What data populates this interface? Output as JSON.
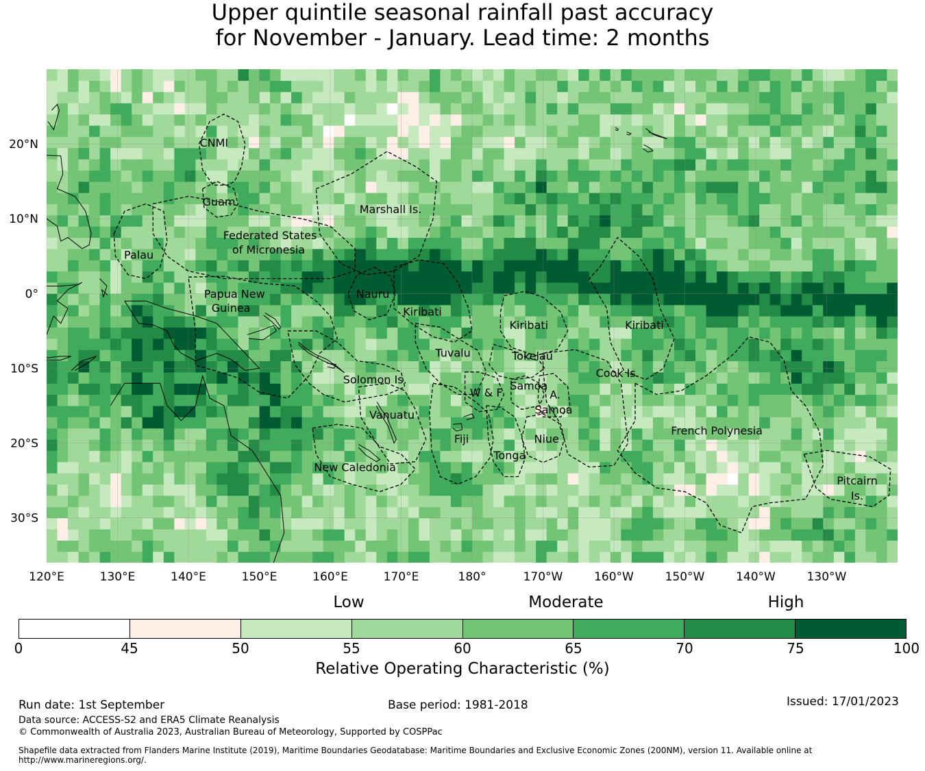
{
  "title": {
    "line1": "Upper quintile seasonal rainfall past accuracy",
    "line2": "for November - January. Lead time: 2 months"
  },
  "map": {
    "lat_range": [
      -36,
      30
    ],
    "lon_range": [
      120,
      240
    ],
    "lat_ticks": [
      {
        "lat": 20,
        "label": "20°N"
      },
      {
        "lat": 10,
        "label": "10°N"
      },
      {
        "lat": 0,
        "label": "0°"
      },
      {
        "lat": -10,
        "label": "10°S"
      },
      {
        "lat": -20,
        "label": "20°S"
      },
      {
        "lat": -30,
        "label": "30°S"
      }
    ],
    "lon_ticks": [
      {
        "lon": 120,
        "label": "120°E"
      },
      {
        "lon": 130,
        "label": "130°E"
      },
      {
        "lon": 140,
        "label": "140°E"
      },
      {
        "lon": 150,
        "label": "150°E"
      },
      {
        "lon": 160,
        "label": "160°E"
      },
      {
        "lon": 170,
        "label": "170°E"
      },
      {
        "lon": 180,
        "label": "180°"
      },
      {
        "lon": 190,
        "label": "170°W"
      },
      {
        "lon": 200,
        "label": "160°W"
      },
      {
        "lon": 210,
        "label": "150°W"
      },
      {
        "lon": 220,
        "label": "140°W"
      },
      {
        "lon": 230,
        "label": "130°W"
      }
    ],
    "grid": true,
    "regions": [
      {
        "name": "CNMI",
        "lon": 143.6,
        "lat": 20.2
      },
      {
        "name": "Guam",
        "lon": 144.3,
        "lat": 12.3
      },
      {
        "name": "Marshall Is.",
        "lon": 168.5,
        "lat": 11.3
      },
      {
        "name": "Federated States",
        "lon": 151.5,
        "lat": 7.8
      },
      {
        "name": "of Micronesia",
        "lon": 151.3,
        "lat": 5.9
      },
      {
        "name": "Palau",
        "lon": 133.0,
        "lat": 5.2
      },
      {
        "name": "Papua New",
        "lon": 146.5,
        "lat": 0.0
      },
      {
        "name": "Guinea",
        "lon": 146.0,
        "lat": -1.9
      },
      {
        "name": "Nauru",
        "lon": 166.0,
        "lat": 0.0
      },
      {
        "name": "Kiribati",
        "lon": 173.0,
        "lat": -2.4
      },
      {
        "name": "Kiribati",
        "lon": 188.0,
        "lat": -4.2
      },
      {
        "name": "Kiribati",
        "lon": 204.3,
        "lat": -4.2
      },
      {
        "name": "Tuvalu",
        "lon": 177.3,
        "lat": -7.9
      },
      {
        "name": "Tokelau",
        "lon": 188.5,
        "lat": -8.3
      },
      {
        "name": "Cook Is.",
        "lon": 200.5,
        "lat": -10.6
      },
      {
        "name": "Solomon Is.",
        "lon": 166.3,
        "lat": -11.5
      },
      {
        "name": "W & F",
        "lon": 182.0,
        "lat": -13.2
      },
      {
        "name": "Samoa",
        "lon": 188.0,
        "lat": -12.3
      },
      {
        "name": "A.",
        "lon": 191.7,
        "lat": -13.5
      },
      {
        "name": "Samoa",
        "lon": 191.5,
        "lat": -15.5
      },
      {
        "name": "Vanuatu",
        "lon": 168.7,
        "lat": -16.2
      },
      {
        "name": "French Polynesia",
        "lon": 214.5,
        "lat": -18.3
      },
      {
        "name": "Fiji",
        "lon": 178.5,
        "lat": -19.4
      },
      {
        "name": "Niue",
        "lon": 190.5,
        "lat": -19.4
      },
      {
        "name": "Tonga",
        "lon": 185.3,
        "lat": -21.6
      },
      {
        "name": "New Caledonia",
        "lon": 163.5,
        "lat": -23.2
      },
      {
        "name": "Pitcairn",
        "lon": 234.3,
        "lat": -25.0
      },
      {
        "name": "Is.",
        "lon": 234.3,
        "lat": -27.0
      }
    ]
  },
  "colorbar": {
    "categories": [
      {
        "label": "Low",
        "at": 0.375
      },
      {
        "label": "Moderate",
        "at": 0.625
      },
      {
        "label": "High",
        "at": 0.875
      }
    ],
    "bins": [
      {
        "from": "0",
        "to": "45",
        "color": "#ffffff"
      },
      {
        "from": "45",
        "to": "50",
        "color": "#fdeee6"
      },
      {
        "from": "50",
        "to": "55",
        "color": "#c7e9c0"
      },
      {
        "from": "55",
        "to": "60",
        "color": "#a1d99b"
      },
      {
        "from": "60",
        "to": "65",
        "color": "#74c476"
      },
      {
        "from": "65",
        "to": "70",
        "color": "#41ab5d"
      },
      {
        "from": "70",
        "to": "75",
        "color": "#238b45"
      },
      {
        "from": "75",
        "to": "100",
        "color": "#005a32"
      }
    ],
    "tick_labels": [
      "0",
      "45",
      "50",
      "55",
      "60",
      "65",
      "70",
      "75",
      "100"
    ],
    "label": "Relative Operating Characteristic (%)"
  },
  "footer": {
    "run_date": "Run date: 1st September",
    "base_period": "Base period: 1981-2018",
    "issued": "Issued: 17/01/2023",
    "data_source": "Data source: ACCESS-S2 and ERA5 Climate Reanalysis",
    "copyright": "© Commonwealth of Australia 2023, Australian Bureau of Meteorology, Supported by COSPPac",
    "shapefile_note": "Shapefile data extracted from Flanders Marine Institute (2019), Maritime Boundaries Geodatabase: Maritime Boundaries and Exclusive Economic Zones (200NM), version 11. Available online at http://www.marineregions.org/."
  }
}
